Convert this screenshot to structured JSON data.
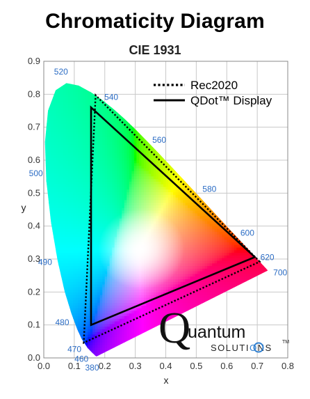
{
  "chart_data": {
    "type": "scatter",
    "title": "Chromaticity Diagram",
    "subtitle": "CIE 1931",
    "xlabel": "x",
    "ylabel": "y",
    "xlim": [
      0.0,
      0.8
    ],
    "ylim": [
      0.0,
      0.9
    ],
    "x_ticks": [
      "0.0",
      "0.1",
      "0.2",
      "0.3",
      "0.4",
      "0.5",
      "0.6",
      "0.7",
      "0.8"
    ],
    "y_ticks": [
      "0.0",
      "0.1",
      "0.2",
      "0.3",
      "0.4",
      "0.5",
      "0.6",
      "0.7",
      "0.8",
      "0.9"
    ],
    "grid": true,
    "legend_position": "top-right",
    "spectral_locus": [
      [
        0.1741,
        0.005
      ],
      [
        0.1738,
        0.0049
      ],
      [
        0.1736,
        0.0049
      ],
      [
        0.1733,
        0.0048
      ],
      [
        0.1726,
        0.0048
      ],
      [
        0.1714,
        0.0051
      ],
      [
        0.1689,
        0.0069
      ],
      [
        0.1644,
        0.0109
      ],
      [
        0.1566,
        0.0177
      ],
      [
        0.144,
        0.0297
      ],
      [
        0.1241,
        0.0578
      ],
      [
        0.1096,
        0.0868
      ],
      [
        0.0913,
        0.1327
      ],
      [
        0.0687,
        0.2007
      ],
      [
        0.0454,
        0.295
      ],
      [
        0.0235,
        0.4127
      ],
      [
        0.0082,
        0.5384
      ],
      [
        0.0039,
        0.6548
      ],
      [
        0.0139,
        0.7502
      ],
      [
        0.0389,
        0.812
      ],
      [
        0.0743,
        0.8338
      ],
      [
        0.1142,
        0.8262
      ],
      [
        0.1547,
        0.8059
      ],
      [
        0.1929,
        0.7816
      ],
      [
        0.2296,
        0.7543
      ],
      [
        0.2658,
        0.7243
      ],
      [
        0.3016,
        0.6923
      ],
      [
        0.3373,
        0.6589
      ],
      [
        0.3731,
        0.6245
      ],
      [
        0.4087,
        0.5896
      ],
      [
        0.4441,
        0.5547
      ],
      [
        0.4788,
        0.5202
      ],
      [
        0.5125,
        0.4866
      ],
      [
        0.5448,
        0.4544
      ],
      [
        0.5752,
        0.4242
      ],
      [
        0.6029,
        0.3965
      ],
      [
        0.627,
        0.3725
      ],
      [
        0.6482,
        0.3514
      ],
      [
        0.6658,
        0.334
      ],
      [
        0.6801,
        0.3197
      ],
      [
        0.6915,
        0.3083
      ],
      [
        0.7006,
        0.2993
      ],
      [
        0.7079,
        0.292
      ],
      [
        0.714,
        0.2859
      ],
      [
        0.719,
        0.2809
      ],
      [
        0.723,
        0.277
      ],
      [
        0.726,
        0.274
      ],
      [
        0.7283,
        0.2717
      ],
      [
        0.73,
        0.27
      ],
      [
        0.7311,
        0.2689
      ],
      [
        0.732,
        0.268
      ],
      [
        0.7327,
        0.2673
      ],
      [
        0.7334,
        0.2666
      ],
      [
        0.734,
        0.266
      ],
      [
        0.7344,
        0.2656
      ],
      [
        0.7346,
        0.2654
      ],
      [
        0.7347,
        0.2653
      ]
    ],
    "wavelength_labels": [
      {
        "label": "380",
        "x": 0.175,
        "y": 0.005
      },
      {
        "label": "460",
        "x": 0.144,
        "y": 0.03
      },
      {
        "label": "470",
        "x": 0.124,
        "y": 0.058
      },
      {
        "label": "480",
        "x": 0.091,
        "y": 0.133
      },
      {
        "label": "490",
        "x": 0.045,
        "y": 0.295
      },
      {
        "label": "500",
        "x": 0.008,
        "y": 0.538
      },
      {
        "label": "520",
        "x": 0.074,
        "y": 0.834
      },
      {
        "label": "540",
        "x": 0.23,
        "y": 0.754
      },
      {
        "label": "560",
        "x": 0.373,
        "y": 0.624
      },
      {
        "label": "580",
        "x": 0.513,
        "y": 0.487
      },
      {
        "label": "600",
        "x": 0.627,
        "y": 0.373
      },
      {
        "label": "620",
        "x": 0.692,
        "y": 0.308
      },
      {
        "label": "700",
        "x": 0.735,
        "y": 0.265
      }
    ],
    "series": [
      {
        "name": "Rec2020",
        "style": "dotted",
        "points": [
          [
            0.708,
            0.292
          ],
          [
            0.17,
            0.797
          ],
          [
            0.131,
            0.046
          ]
        ]
      },
      {
        "name": "QDot™ Display",
        "style": "solid",
        "points": [
          [
            0.692,
            0.306
          ],
          [
            0.155,
            0.76
          ],
          [
            0.155,
            0.1
          ]
        ]
      }
    ]
  },
  "brand": {
    "q": "Q",
    "word": "uantum",
    "sub": "SOLUTI",
    "sub_o": "O",
    "sub_end": "NS",
    "tm": "TM"
  },
  "colors": {
    "grid": "#c8c8c8",
    "axis": "#666666",
    "wavelength_label": "#2b6cc4",
    "brand_ring": "#2f7fd0"
  }
}
